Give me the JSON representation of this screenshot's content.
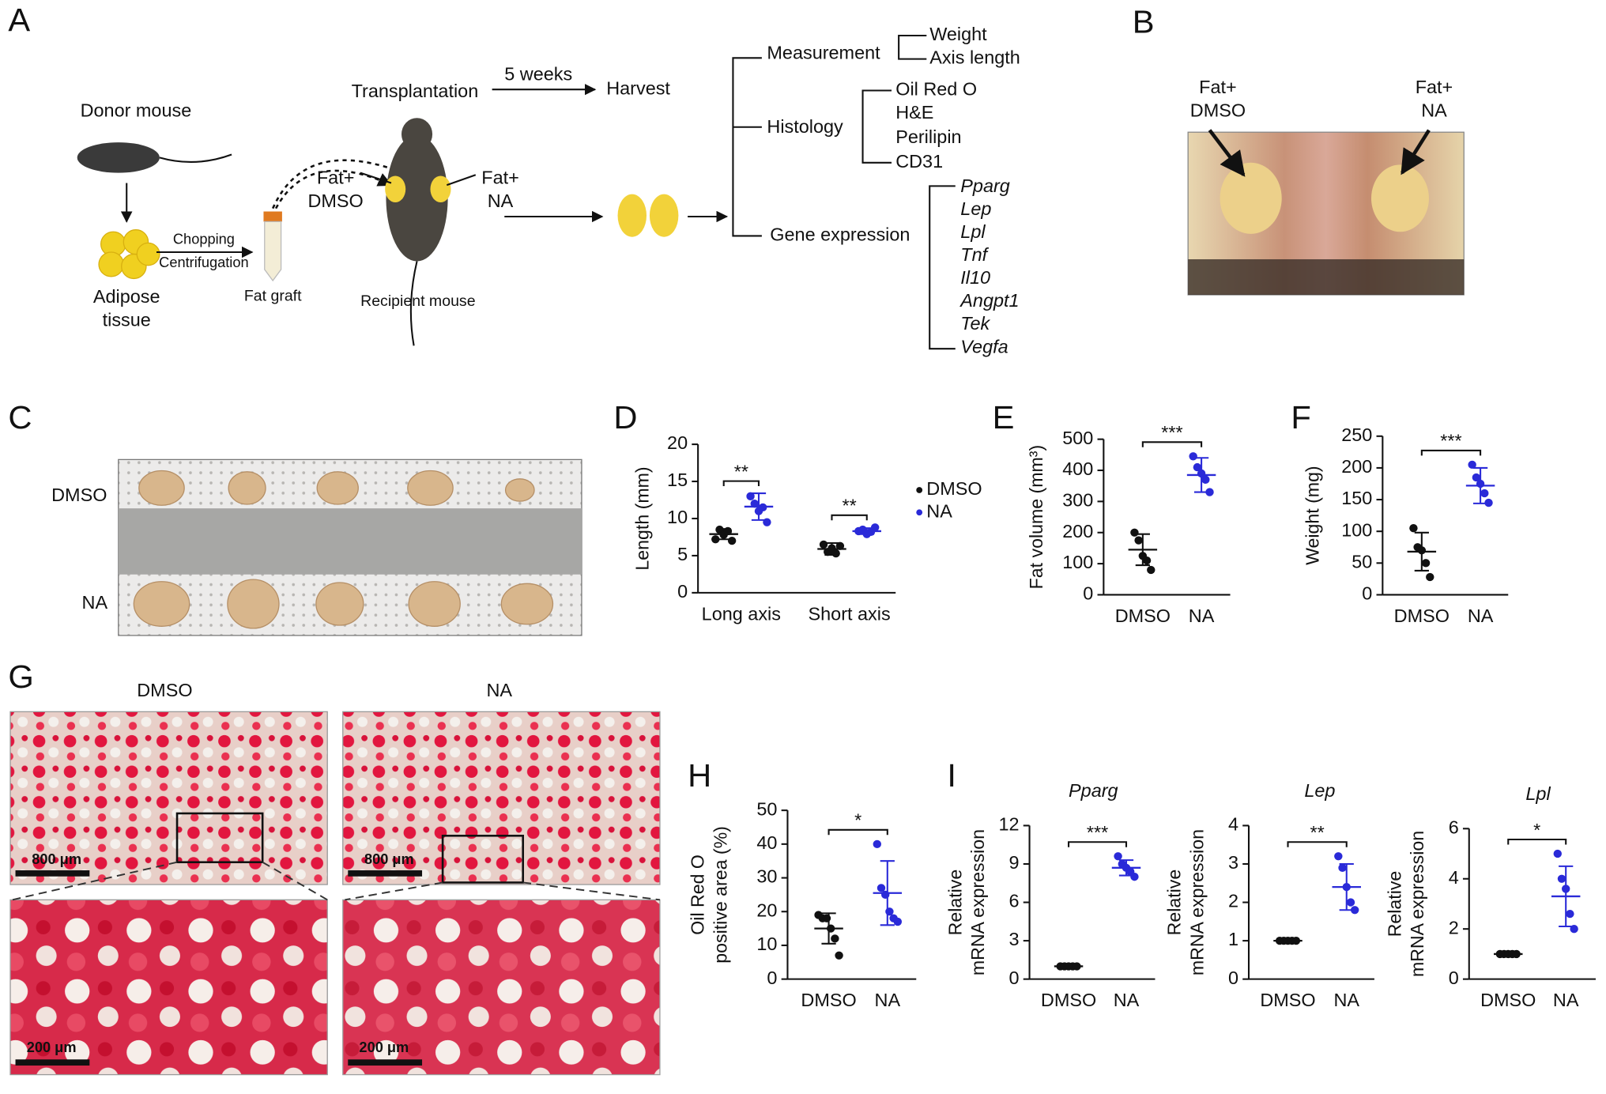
{
  "panels": [
    "A",
    "B",
    "C",
    "D",
    "E",
    "F",
    "G",
    "H",
    "I"
  ],
  "diagram": {
    "donor": "Donor mouse",
    "adipose": [
      "Adipose",
      "tissue"
    ],
    "chopping": "Chopping",
    "centrifugation": "Centrifugation",
    "fat_graft": "Fat graft",
    "transplantation": "Transplantation",
    "fat_dmso": [
      "Fat+",
      "DMSO"
    ],
    "fat_na": [
      "Fat+",
      "NA"
    ],
    "recipient": "Recipient mouse",
    "weeks": "5 weeks",
    "harvest": "Harvest",
    "measurement": "Measurement",
    "measure_items": [
      "Weight",
      "Axis length"
    ],
    "histology": "Histology",
    "histology_items": [
      "Oil Red O",
      "H&E",
      "Perilipin",
      "CD31"
    ],
    "gene": "Gene expression",
    "genes": [
      "Pparg",
      "Lep",
      "Lpl",
      "Tnf",
      "Il10",
      "Angpt1",
      "Tek",
      "Vegfa"
    ]
  },
  "photo_b": {
    "left": [
      "Fat+",
      "DMSO"
    ],
    "right": [
      "Fat+",
      "NA"
    ]
  },
  "photo_c": {
    "rows": [
      "DMSO",
      "NA"
    ]
  },
  "photo_g": {
    "columns": [
      "DMSO",
      "NA"
    ],
    "scale_bars": [
      "800 μm",
      "200 μm"
    ]
  },
  "chart_data": [
    {
      "type": "dot",
      "ylabel": [
        "Length (mm)"
      ],
      "ylim": [
        0,
        20
      ],
      "yticks": [
        0,
        5,
        10,
        15,
        20
      ],
      "categories": [
        "Long axis",
        "Short axis"
      ],
      "significance": [
        "**",
        "**"
      ],
      "series": [
        {
          "name": "DMSO",
          "color": "#111111",
          "points": [
            [
              7.2,
              8.5,
              7.8,
              8.3,
              7.0
            ],
            [
              6.5,
              5.5,
              6.0,
              5.3,
              6.3
            ]
          ],
          "mean": [
            7.9,
            5.9
          ],
          "sd": [
            0.7,
            0.8
          ]
        },
        {
          "name": "NA",
          "color": "#2a2ad8",
          "points": [
            [
              13.0,
              12.0,
              11.0,
              11.5,
              9.5
            ],
            [
              8.3,
              8.5,
              7.9,
              8.2,
              8.8
            ]
          ],
          "mean": [
            11.6,
            8.3
          ],
          "sd": [
            1.8,
            0.4
          ]
        }
      ]
    },
    {
      "type": "dot",
      "ylabel": [
        "Fat volume (mm³)"
      ],
      "ylim": [
        0,
        500
      ],
      "yticks": [
        0,
        100,
        200,
        300,
        400,
        500
      ],
      "categories": [
        "DMSO",
        "NA"
      ],
      "colors": [
        "#111111",
        "#2a2ad8"
      ],
      "significance": "***",
      "points": [
        [
          200,
          175,
          125,
          110,
          80
        ],
        [
          445,
          410,
          390,
          370,
          330
        ]
      ],
      "mean": [
        145,
        385
      ],
      "sd": [
        50,
        55
      ]
    },
    {
      "type": "dot",
      "ylabel": [
        "Weight (mg)"
      ],
      "ylim": [
        0,
        250
      ],
      "yticks": [
        0,
        50,
        100,
        150,
        200,
        250
      ],
      "categories": [
        "DMSO",
        "NA"
      ],
      "colors": [
        "#111111",
        "#2a2ad8"
      ],
      "significance": "***",
      "points": [
        [
          105,
          75,
          70,
          50,
          28
        ],
        [
          205,
          185,
          175,
          160,
          145
        ]
      ],
      "mean": [
        68,
        172
      ],
      "sd": [
        30,
        28
      ]
    },
    {
      "type": "dot",
      "ylabel": [
        "Oil Red O",
        "positive area (%)"
      ],
      "ylim": [
        0,
        50
      ],
      "yticks": [
        0,
        10,
        20,
        30,
        40,
        50
      ],
      "categories": [
        "DMSO",
        "NA"
      ],
      "colors": [
        "#111111",
        "#2a2ad8"
      ],
      "significance": "*",
      "points": [
        [
          19,
          18,
          18,
          15,
          12,
          7
        ],
        [
          40,
          27,
          25,
          20,
          18,
          17
        ]
      ],
      "mean": [
        15,
        25.5
      ],
      "sd": [
        4.5,
        9.5
      ]
    },
    {
      "type": "dot",
      "title": "Pparg",
      "ylabel": [
        "Relative",
        "mRNA expression"
      ],
      "ylim": [
        0,
        12
      ],
      "yticks": [
        0,
        3,
        6,
        9,
        12
      ],
      "categories": [
        "DMSO",
        "NA"
      ],
      "colors": [
        "#111111",
        "#2a2ad8"
      ],
      "significance": "***",
      "points": [
        [
          1,
          1,
          1,
          1,
          1
        ],
        [
          9.6,
          9.0,
          8.7,
          8.4,
          8.0
        ]
      ],
      "mean": [
        1,
        8.7
      ],
      "sd": [
        0,
        0.6
      ]
    },
    {
      "type": "dot",
      "title": "Lep",
      "ylabel": [
        "Relative",
        "mRNA expression"
      ],
      "ylim": [
        0,
        4
      ],
      "yticks": [
        0,
        1,
        2,
        3,
        4
      ],
      "categories": [
        "DMSO",
        "NA"
      ],
      "colors": [
        "#111111",
        "#2a2ad8"
      ],
      "significance": "**",
      "points": [
        [
          1,
          1,
          1,
          1,
          1
        ],
        [
          3.2,
          2.9,
          2.4,
          2.0,
          1.8
        ]
      ],
      "mean": [
        1,
        2.4
      ],
      "sd": [
        0,
        0.6
      ]
    },
    {
      "type": "dot",
      "title": "Lpl",
      "ylabel": [
        "Relative",
        "mRNA expression"
      ],
      "ylim": [
        0,
        6
      ],
      "yticks": [
        0,
        2,
        4,
        6
      ],
      "categories": [
        "DMSO",
        "NA"
      ],
      "colors": [
        "#111111",
        "#2a2ad8"
      ],
      "significance": "*",
      "points": [
        [
          1,
          1,
          1,
          1,
          1
        ],
        [
          5.0,
          4.0,
          3.6,
          2.6,
          2.0
        ]
      ],
      "mean": [
        1,
        3.3
      ],
      "sd": [
        0,
        1.2
      ]
    }
  ]
}
